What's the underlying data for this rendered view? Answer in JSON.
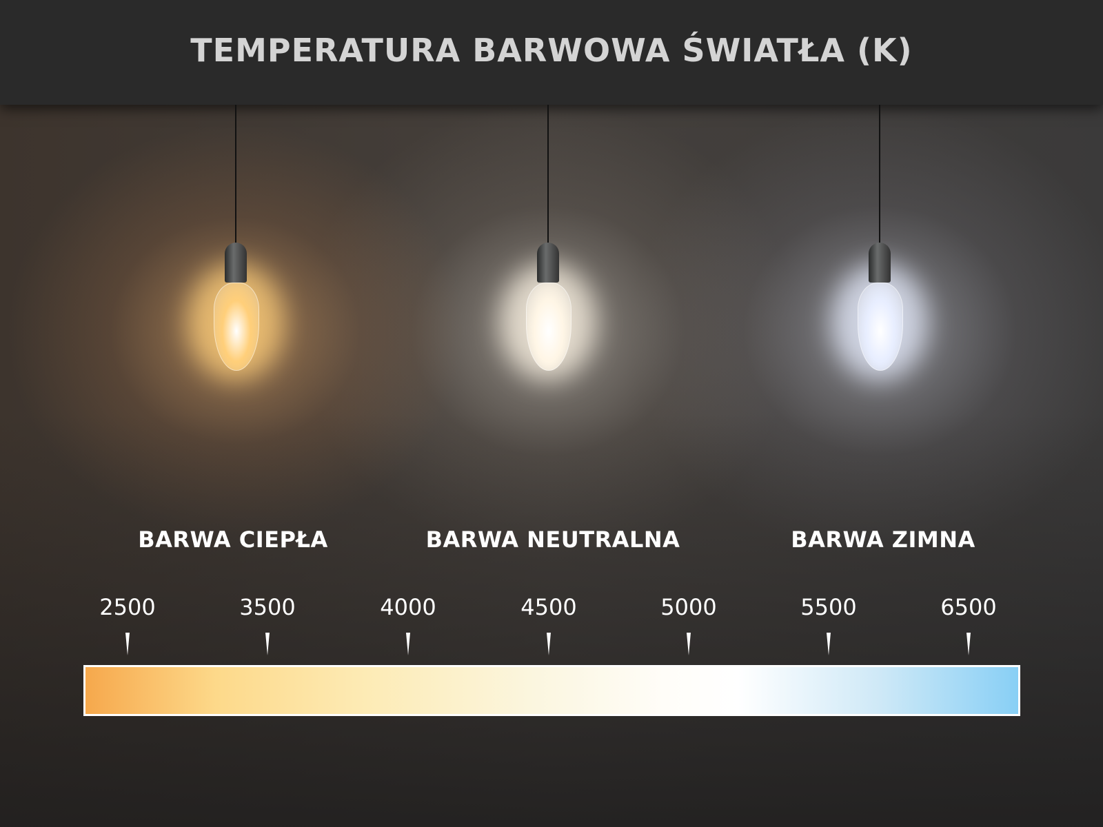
{
  "title": "TEMPERATURA BARWOWA ŚWIATŁA (K)",
  "categories": [
    {
      "label": "BARWA CIEPŁA",
      "glow_color": "#ffcf7a"
    },
    {
      "label": "BARWA NEUTRALNA",
      "glow_color": "#fff6e6"
    },
    {
      "label": "BARWA ZIMNA",
      "glow_color": "#e8eeff"
    }
  ],
  "scale": {
    "unit": "K",
    "ticks": [
      "2500",
      "3500",
      "4000",
      "4500",
      "5000",
      "5500",
      "6500"
    ],
    "gradient_colors": [
      "#f6a84c",
      "#fdd98a",
      "#fbf6df",
      "#ffffff",
      "#88cff5"
    ]
  }
}
